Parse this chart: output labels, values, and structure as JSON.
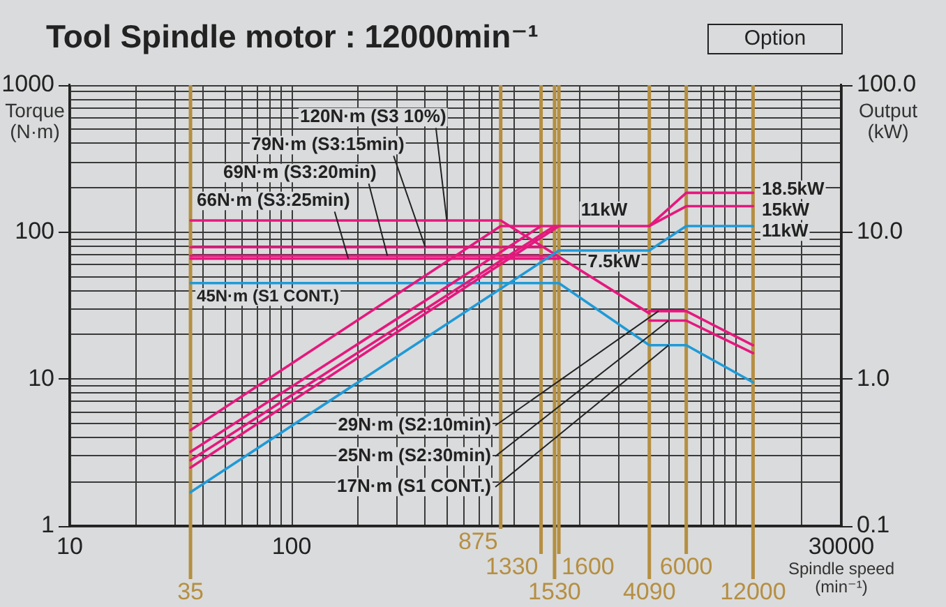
{
  "chart_data": [
    {
      "type": "line",
      "title": "Tool Spindle motor : 12000min⁻¹",
      "xlabel": "Spindle speed (min⁻¹)",
      "ylabel": "Torque (N·m)",
      "log": "xy",
      "grid": true,
      "marker": "none",
      "line_style": "solid",
      "xlim": [
        10,
        30000
      ],
      "xticks": [
        10,
        {
          "value": 20,
          "label": null
        },
        {
          "value": 30,
          "label": null
        },
        {
          "value": 40,
          "label": null
        },
        {
          "value": 50,
          "label": null
        },
        {
          "value": 60,
          "label": null
        },
        {
          "value": 70,
          "label": null
        },
        {
          "value": 80,
          "label": null
        },
        {
          "value": 90,
          "label": null
        },
        100,
        {
          "value": 200,
          "label": null
        },
        {
          "value": 300,
          "label": null
        },
        {
          "value": 400,
          "label": null
        },
        {
          "value": 500,
          "label": null
        },
        {
          "value": 600,
          "label": null
        },
        {
          "value": 700,
          "label": null
        },
        {
          "value": 800,
          "label": null
        },
        {
          "value": 1000,
          "label": null
        },
        {
          "value": 2000,
          "label": null
        },
        {
          "value": 3000,
          "label": null
        },
        {
          "value": 5000,
          "label": null
        },
        {
          "value": 7000,
          "label": null
        },
        {
          "value": 8000,
          "label": null
        },
        {
          "value": 9000,
          "label": null
        },
        {
          "value": 10000,
          "label": null
        },
        {
          "value": 20000,
          "label": null
        },
        30000
      ],
      "ylim": [
        1,
        1000
      ],
      "yticks": [
        1,
        {
          "value": 2,
          "label": null
        },
        {
          "value": 3,
          "label": null
        },
        {
          "value": 4,
          "label": null
        },
        {
          "value": 5,
          "label": null
        },
        {
          "value": 6,
          "label": null
        },
        {
          "value": 7,
          "label": null
        },
        {
          "value": 8,
          "label": null
        },
        {
          "value": 9,
          "label": null
        },
        10,
        {
          "value": 20,
          "label": null
        },
        {
          "value": 30,
          "label": null
        },
        {
          "value": 40,
          "label": null
        },
        {
          "value": 50,
          "label": null
        },
        {
          "value": 60,
          "label": null
        },
        {
          "value": 70,
          "label": null
        },
        {
          "value": 80,
          "label": null
        },
        {
          "value": 90,
          "label": null
        },
        100,
        {
          "value": 200,
          "label": null
        },
        {
          "value": 300,
          "label": null
        },
        {
          "value": 400,
          "label": null
        },
        {
          "value": 500,
          "label": null
        },
        {
          "value": 600,
          "label": null
        },
        {
          "value": 700,
          "label": null
        },
        {
          "value": 800,
          "label": null
        },
        {
          "value": 900,
          "label": null
        },
        1000
      ],
      "series": [
        {
          "color": "#e5187d",
          "x": [
            35,
            875,
            4090
          ],
          "values": [
            120,
            120,
            28
          ]
        },
        {
          "color": "#e5187d",
          "x": [
            35,
            1330
          ],
          "values": [
            79,
            79
          ]
        },
        {
          "color": "#e5187d",
          "x": [
            35,
            1530
          ],
          "values": [
            69,
            69
          ]
        },
        {
          "color": "#e5187d",
          "x": [
            35,
            1600
          ],
          "values": [
            66,
            66
          ]
        },
        {
          "color": "#e5187d",
          "x": [
            4090,
            6000,
            12000
          ],
          "values": [
            29,
            29,
            17
          ]
        },
        {
          "color": "#e5187d",
          "x": [
            4090,
            6000,
            12000
          ],
          "values": [
            25,
            25,
            15
          ]
        },
        {
          "color": "#1f9ad7",
          "x": [
            35,
            1600,
            4090,
            6000,
            12000
          ],
          "values": [
            45,
            45,
            17,
            17,
            9.5
          ]
        }
      ],
      "ref_lines": [
        {
          "axis": "x",
          "value": 35,
          "label": "35",
          "color": "#b58f42"
        },
        {
          "axis": "x",
          "value": 875,
          "label": "875",
          "color": "#b58f42"
        },
        {
          "axis": "x",
          "value": 1330,
          "label": "1330",
          "color": "#b58f42"
        },
        {
          "axis": "x",
          "value": 1530,
          "label": "1530",
          "color": "#b58f42"
        },
        {
          "axis": "x",
          "value": 1600,
          "label": "1600",
          "color": "#b58f42"
        },
        {
          "axis": "x",
          "value": 4090,
          "label": "4090",
          "color": "#b58f42"
        },
        {
          "axis": "x",
          "value": 6000,
          "label": "6000",
          "color": "#b58f42"
        },
        {
          "axis": "x",
          "value": 12000,
          "label": "12000",
          "color": "#b58f42"
        }
      ],
      "annotations": [
        "Option",
        {
          "text": "120N·m (S3 10%)",
          "x": 500,
          "y": 120
        },
        {
          "text": "79N·m (S3:15min)",
          "x": 400,
          "y": 79
        },
        {
          "text": "69N·m (S3:20min)",
          "x": 270,
          "y": 69
        },
        {
          "text": "66N·m (S3:25min)",
          "x": 180,
          "y": 66
        },
        {
          "text": "45N·m (S1 CONT.)",
          "x": 100,
          "y": 45
        },
        {
          "text": "29N·m (S2:10min)",
          "x": 4500,
          "y": 29
        },
        {
          "text": "25N·m (S2:30min)",
          "x": 5000,
          "y": 25
        },
        {
          "text": "17N·m (S1 CONT.)",
          "x": 5000,
          "y": 17
        }
      ]
    },
    {
      "type": "line",
      "ylabel": "Output (kW)",
      "log": "xy",
      "marker": "none",
      "line_style": "solid",
      "tick_labels": "y",
      "xlim": [
        10,
        30000
      ],
      "ylim": [
        0.1,
        100
      ],
      "yticks": [
        0.1,
        {
          "value": 1,
          "label": "1.0"
        },
        {
          "value": 10,
          "label": "10.0"
        },
        {
          "value": 100,
          "label": "100.0"
        }
      ],
      "series": [
        {
          "color": "#e5187d",
          "x": [
            35,
            875,
            4090,
            6000,
            12000
          ],
          "values": [
            0.45,
            11,
            11,
            18.5,
            18.5
          ]
        },
        {
          "color": "#e5187d",
          "x": [
            35,
            1330
          ],
          "values": [
            0.32,
            11
          ]
        },
        {
          "color": "#e5187d",
          "x": [
            35,
            1530
          ],
          "values": [
            0.28,
            11
          ]
        },
        {
          "color": "#e5187d",
          "x": [
            35,
            1600
          ],
          "values": [
            0.25,
            11
          ]
        },
        {
          "color": "#e5187d",
          "x": [
            4090,
            6000,
            12000
          ],
          "values": [
            11,
            15,
            15
          ]
        },
        {
          "color": "#1f9ad7",
          "x": [
            35,
            1600,
            4090,
            6000,
            12000
          ],
          "values": [
            0.17,
            7.5,
            7.5,
            11,
            11
          ]
        }
      ],
      "annotations": [
        "11kW",
        "7.5kW",
        "18.5kW",
        "15kW",
        "11kW"
      ]
    }
  ]
}
